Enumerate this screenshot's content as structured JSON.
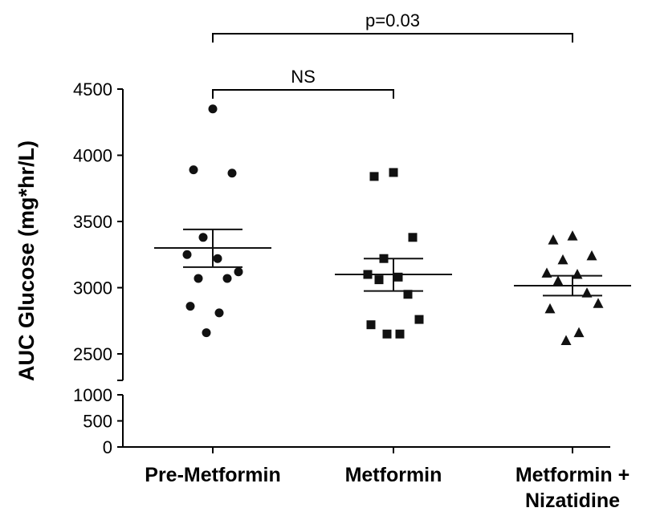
{
  "chart_data": {
    "type": "scatter",
    "ylabel": "AUC Glucose (mg*hr/L)",
    "categories": [
      "Pre-Metformin",
      "Metformin",
      "Metformin +\nNizatidine"
    ],
    "y_axis": {
      "broken": true,
      "lower_segment": [
        0,
        1000
      ],
      "upper_segment": [
        2300,
        4500
      ],
      "lower_ticks": [
        0,
        500,
        1000
      ],
      "upper_ticks": [
        2500,
        3000,
        3500,
        4000,
        4500
      ]
    },
    "grid": false,
    "legend": "none",
    "series": [
      {
        "category": "Pre-Metformin",
        "marker": "circle",
        "values": [
          4350,
          3890,
          3865,
          3380,
          3250,
          3220,
          3070,
          3070,
          3120,
          2860,
          2810,
          2660
        ],
        "mean": 3300,
        "sem_upper": 3440,
        "sem_lower": 3155
      },
      {
        "category": "Metformin",
        "marker": "square",
        "values": [
          3870,
          3840,
          3380,
          3220,
          3100,
          3080,
          3060,
          2950,
          2760,
          2720,
          2650,
          2650
        ],
        "mean": 3100,
        "sem_upper": 3220,
        "sem_lower": 2975
      },
      {
        "category": "Metformin +\nNizatidine",
        "marker": "triangle",
        "values": [
          3390,
          3360,
          3240,
          3210,
          3110,
          3100,
          3050,
          2960,
          2880,
          2840,
          2660,
          2600
        ],
        "mean": 3015,
        "sem_upper": 3090,
        "sem_lower": 2940
      }
    ],
    "annotations": [
      {
        "text": "p=0.03",
        "from": "Pre-Metformin",
        "to": "Metformin +\nNizatidine",
        "level": "upper"
      },
      {
        "text": "NS",
        "from": "Pre-Metformin",
        "to": "Metformin",
        "level": "lower"
      }
    ]
  }
}
